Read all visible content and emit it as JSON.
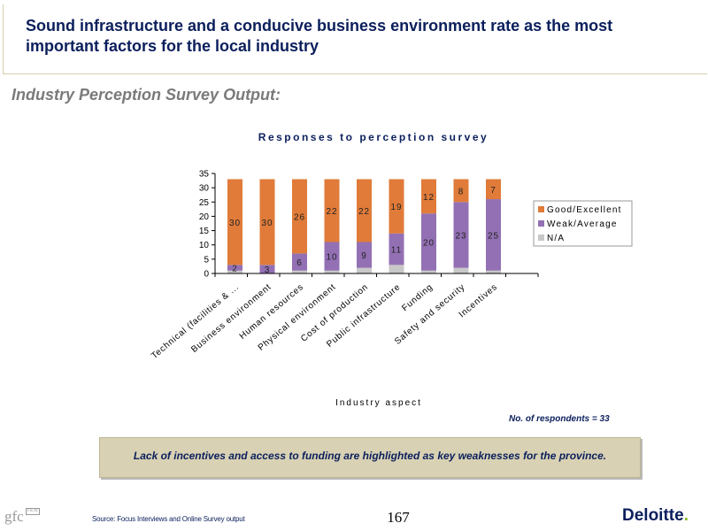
{
  "header": {
    "title": "Sound infrastructure and a conducive business environment rate as the most important factors for the local industry"
  },
  "subtitle": "Industry Perception Survey Output:",
  "chart_data": {
    "type": "bar",
    "stacked": true,
    "title": "Responses to perception survey",
    "xlabel": "Industry aspect",
    "ylabel": "",
    "ylim": [
      0,
      35
    ],
    "yticks": [
      0,
      5,
      10,
      15,
      20,
      25,
      30,
      35
    ],
    "categories": [
      "Technical (facilities & ...",
      "Business environment",
      "Human resources",
      "Physical environment",
      "Cost of production",
      "Public infrastructure",
      "Funding",
      "Safety and security",
      "Incentives"
    ],
    "series": [
      {
        "name": "N/A",
        "color": "#c8c8c8",
        "values": [
          1,
          0,
          1,
          1,
          2,
          3,
          1,
          2,
          1
        ]
      },
      {
        "name": "Weak/Average",
        "color": "#9370b4",
        "values": [
          2,
          3,
          6,
          10,
          9,
          11,
          20,
          23,
          25
        ]
      },
      {
        "name": "Good/Excellent",
        "color": "#e07b39",
        "values": [
          30,
          30,
          26,
          22,
          22,
          19,
          12,
          8,
          7
        ]
      }
    ],
    "data_labels": {
      "Weak/Average": [
        "2",
        "3",
        "6",
        "10",
        "9",
        "11",
        "20",
        "23",
        "25"
      ],
      "Good/Excellent": [
        "30",
        "30",
        "26",
        "22",
        "22",
        "19",
        "12",
        "8",
        "7"
      ]
    },
    "legend_order": [
      "Good/Excellent",
      "Weak/Average",
      "N/A"
    ],
    "legend_position": "right",
    "grid": false
  },
  "note": "No. of respondents = 33",
  "callout": "Lack of incentives and access to funding are highlighted as key weaknesses for the province.",
  "footer": {
    "source": "Source: Focus Interviews and Online Survey output",
    "page_number": "167",
    "left_logo": "gfc",
    "left_logo_small": "FILM",
    "right_logo": "Deloitte",
    "right_logo_dot": "."
  }
}
